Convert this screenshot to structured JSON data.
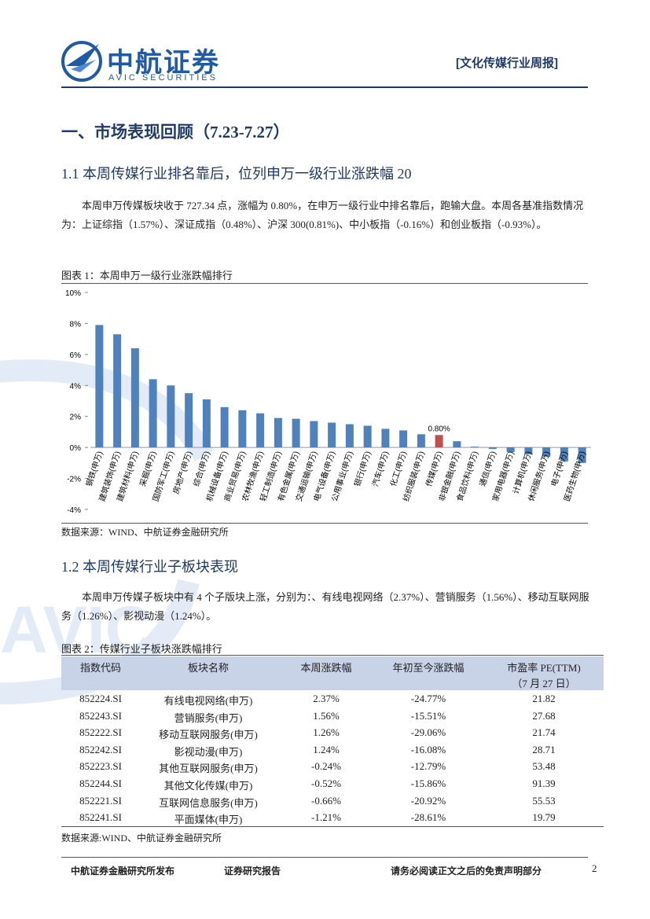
{
  "header": {
    "logo_cn": "中航证券",
    "logo_en": "AVIC SECURITIES",
    "report_type": "[文化传媒行业周报]"
  },
  "watermark": "AVIC",
  "section": {
    "title": "一、市场表现回顾（7.23-7.27）"
  },
  "sub1": {
    "title": "1.1 本周传媒行业排名靠后，位列申万一级行业涨跌幅 20",
    "paragraph": "本周申万传媒板块收于 727.34 点，涨幅为 0.80%，在申万一级行业中排名靠后，跑输大盘。本周各基准指数情况为：上证综指（1.57%）、深证成指（0.48%）、沪深 300(0.81%)、中小板指（-0.16%）和创业板指（-0.93%）。",
    "figure_caption": "图表 1：本周申万一级行业涨跌幅排行",
    "source": "数据来源：WIND、中航证券金融研究所"
  },
  "chart_data": {
    "type": "bar",
    "categories": [
      "钢铁(申万)",
      "建筑装饰(申万)",
      "建筑材料(申万)",
      "采掘(申万)",
      "国防军工(申万)",
      "房地产(申万)",
      "综合(申万)",
      "机械设备(申万)",
      "商业贸易(申万)",
      "农林牧渔(申万)",
      "轻工制造(申万)",
      "有色金属(申万)",
      "交通运输(申万)",
      "电气设备(申万)",
      "公用事业(申万)",
      "银行(申万)",
      "汽车(申万)",
      "化工(申万)",
      "纺织服装(申万)",
      "传媒(申万)",
      "非银金融(申万)",
      "食品饮料(申万)",
      "通信(申万)",
      "家用电器(申万)",
      "计算机(申万)",
      "休闲服务(申万)",
      "电子(申万)",
      "医药生物(申万)"
    ],
    "values": [
      7.9,
      7.3,
      6.4,
      4.4,
      4.0,
      3.5,
      3.1,
      2.6,
      2.4,
      2.2,
      1.9,
      1.85,
      1.7,
      1.6,
      1.5,
      1.4,
      1.2,
      1.1,
      0.85,
      0.8,
      0.4,
      0.05,
      -0.1,
      -0.3,
      -0.45,
      -0.6,
      -0.9,
      -1.0
    ],
    "value_labels": [
      null,
      null,
      null,
      null,
      null,
      null,
      null,
      null,
      null,
      null,
      null,
      null,
      null,
      null,
      null,
      null,
      null,
      null,
      null,
      "0.80%",
      null,
      null,
      null,
      null,
      null,
      null,
      null,
      null
    ],
    "colors": [
      "#4f81bd",
      "#4f81bd",
      "#4f81bd",
      "#4f81bd",
      "#4f81bd",
      "#4f81bd",
      "#4f81bd",
      "#4f81bd",
      "#4f81bd",
      "#4f81bd",
      "#4f81bd",
      "#4f81bd",
      "#4f81bd",
      "#4f81bd",
      "#4f81bd",
      "#4f81bd",
      "#4f81bd",
      "#4f81bd",
      "#4f81bd",
      "#c0504d",
      "#4f81bd",
      "#4f81bd",
      "#4f81bd",
      "#4f81bd",
      "#4f81bd",
      "#4f81bd",
      "#4f81bd",
      "#4f81bd"
    ],
    "ylim": [
      -4,
      10
    ],
    "yticks": [
      {
        "value": -4,
        "label": "-4%"
      },
      {
        "value": -2,
        "label": "-2%"
      },
      {
        "value": 0,
        "label": "0%"
      },
      {
        "value": 2,
        "label": "2%"
      },
      {
        "value": 4,
        "label": "4%"
      },
      {
        "value": 6,
        "label": "6%"
      },
      {
        "value": 8,
        "label": "8%"
      },
      {
        "value": 10,
        "label": "10%"
      }
    ],
    "grid": false
  },
  "sub2": {
    "title": "1.2 本周传媒行业子板块表现",
    "paragraph": "本周申万传媒子板块中有 4 个子版块上涨，分别为：、有线电视网络（2.37%）、营销服务（1.56%）、移动互联网服务（1.26%）、影视动漫（1.24%）。",
    "table_caption": "图表 2：传媒行业子板块涨跌幅排行",
    "source": "数据来源:WIND、中航证券金融研究所"
  },
  "table": {
    "header": [
      "指数代码",
      "板块名称",
      "本周涨跌幅",
      "年初至今涨跌幅",
      "市盈率 PE(TTM)",
      "（7 月 27 日）"
    ],
    "rows": [
      [
        "852224.SI",
        "有线电视网络(申万)",
        "2.37%",
        "-24.77%",
        "21.82"
      ],
      [
        "852243.SI",
        "营销服务(申万)",
        "1.56%",
        "-15.51%",
        "27.68"
      ],
      [
        "852222.SI",
        "移动互联网服务(申万)",
        "1.26%",
        "-29.06%",
        "21.74"
      ],
      [
        "852242.SI",
        "影视动漫(申万)",
        "1.24%",
        "-16.08%",
        "28.71"
      ],
      [
        "852223.SI",
        "其他互联网服务(申万)",
        "-0.24%",
        "-12.79%",
        "53.48"
      ],
      [
        "852244.SI",
        "其他文化传媒(申万)",
        "-0.52%",
        "-15.86%",
        "91.39"
      ],
      [
        "852221.SI",
        "互联网信息服务(申万)",
        "-0.66%",
        "-20.92%",
        "55.53"
      ],
      [
        "852241.SI",
        "平面媒体(申万)",
        "-1.21%",
        "-28.61%",
        "19.79"
      ]
    ]
  },
  "footer": {
    "publisher": "中航证券金融研究所发布",
    "report_kind": "证券研究报告",
    "disclaimer": "请务必阅读正文之后的免责声明部分",
    "page": "2"
  }
}
